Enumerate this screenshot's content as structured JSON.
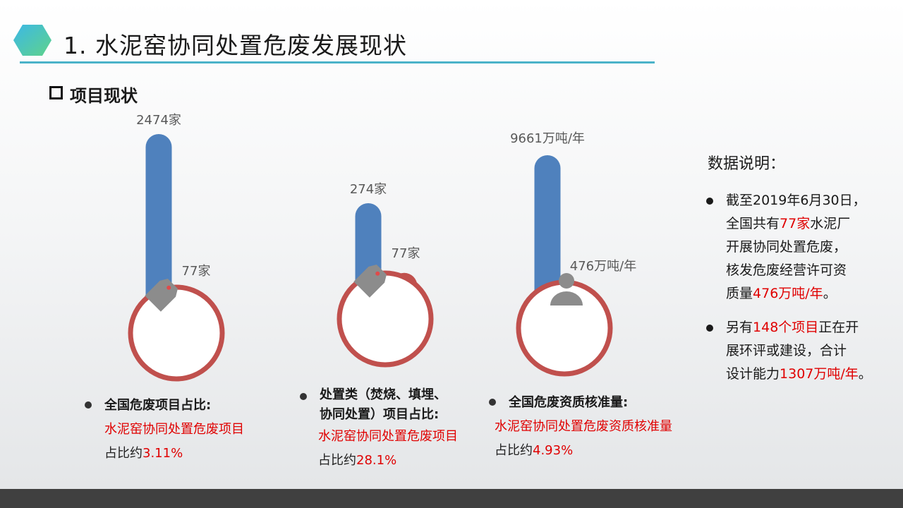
{
  "slide": {
    "title": "1. 水泥窑协同处置危废发展现状",
    "section": "项目现状"
  },
  "colors": {
    "accent": "#4bb3c9",
    "blue": "#4f81bd",
    "red": "#c0504d",
    "highlight": "#e00000",
    "icon": "#8c8c8c"
  },
  "chart_data": [
    {
      "type": "bar",
      "categories": [
        "全国危废项目",
        "水泥窑协同处置危废项目"
      ],
      "values": [
        2474,
        77
      ],
      "data_labels": [
        "2474家",
        "77家"
      ],
      "icon": "tag-icon",
      "caption": {
        "title": "全国危废项目占比:",
        "line1": "水泥窑协同处置危废项目",
        "line2_prefix": "占比约",
        "line2_value": "3.11%"
      }
    },
    {
      "type": "bar",
      "categories": [
        "处置类项目",
        "水泥窑协同处置危废项目"
      ],
      "values": [
        274,
        77
      ],
      "data_labels": [
        "274家",
        "77家"
      ],
      "icon": "tag-icon",
      "caption": {
        "title_line1": "处置类（焚烧、填埋、",
        "title_line2": "协同处置）项目占比:",
        "line1": "水泥窑协同处置危废项目",
        "line2_prefix": "占比约",
        "line2_value": "28.1%"
      }
    },
    {
      "type": "bar",
      "categories": [
        "全国危废资质核准量",
        "水泥窑协同处置危废资质核准量"
      ],
      "values": [
        9661,
        476
      ],
      "data_labels": [
        "9661万吨/年",
        "476万吨/年"
      ],
      "icon": "person-icon",
      "caption": {
        "title": "全国危废资质核准量:",
        "line1": "水泥窑协同处置危废资质核准量",
        "line2_prefix": "占比约",
        "line2_value": "4.93%"
      }
    }
  ],
  "notes": {
    "title": "数据说明：",
    "item1": {
      "l1": "截至2019年6月30日，",
      "l2a": "全国共有",
      "l2b": "77家",
      "l2c": "水泥厂",
      "l3": "开展协同处置危废，",
      "l4": "核发危废经营许可资",
      "l5a": "质量",
      "l5b": "476万吨/年",
      "l5c": "。"
    },
    "item2": {
      "l1a": "另有",
      "l1b": "148个项目",
      "l1c": "正在开",
      "l2": "展环评或建设，合计",
      "l3a": "设计能力",
      "l3b": "1307万吨/年",
      "l3c": "。"
    }
  }
}
